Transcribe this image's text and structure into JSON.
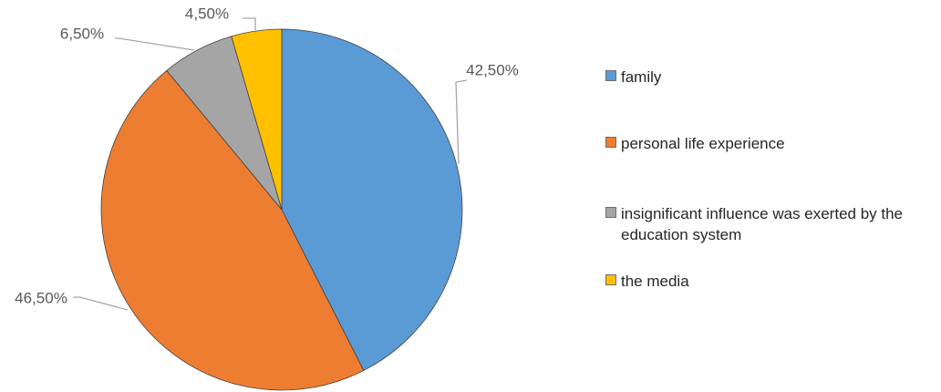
{
  "chart_data": {
    "type": "pie",
    "categories": [
      "family",
      "personal life experience",
      "insignificant influence was exerted by the education system",
      "the media"
    ],
    "values": [
      42.5,
      46.5,
      6.5,
      4.5
    ],
    "value_labels": [
      "42,50%",
      "46,50%",
      "6,50%",
      "4,50%"
    ],
    "colors": [
      "#5b9bd5",
      "#ed7d31",
      "#a5a5a5",
      "#ffc000"
    ],
    "legend": "right"
  }
}
